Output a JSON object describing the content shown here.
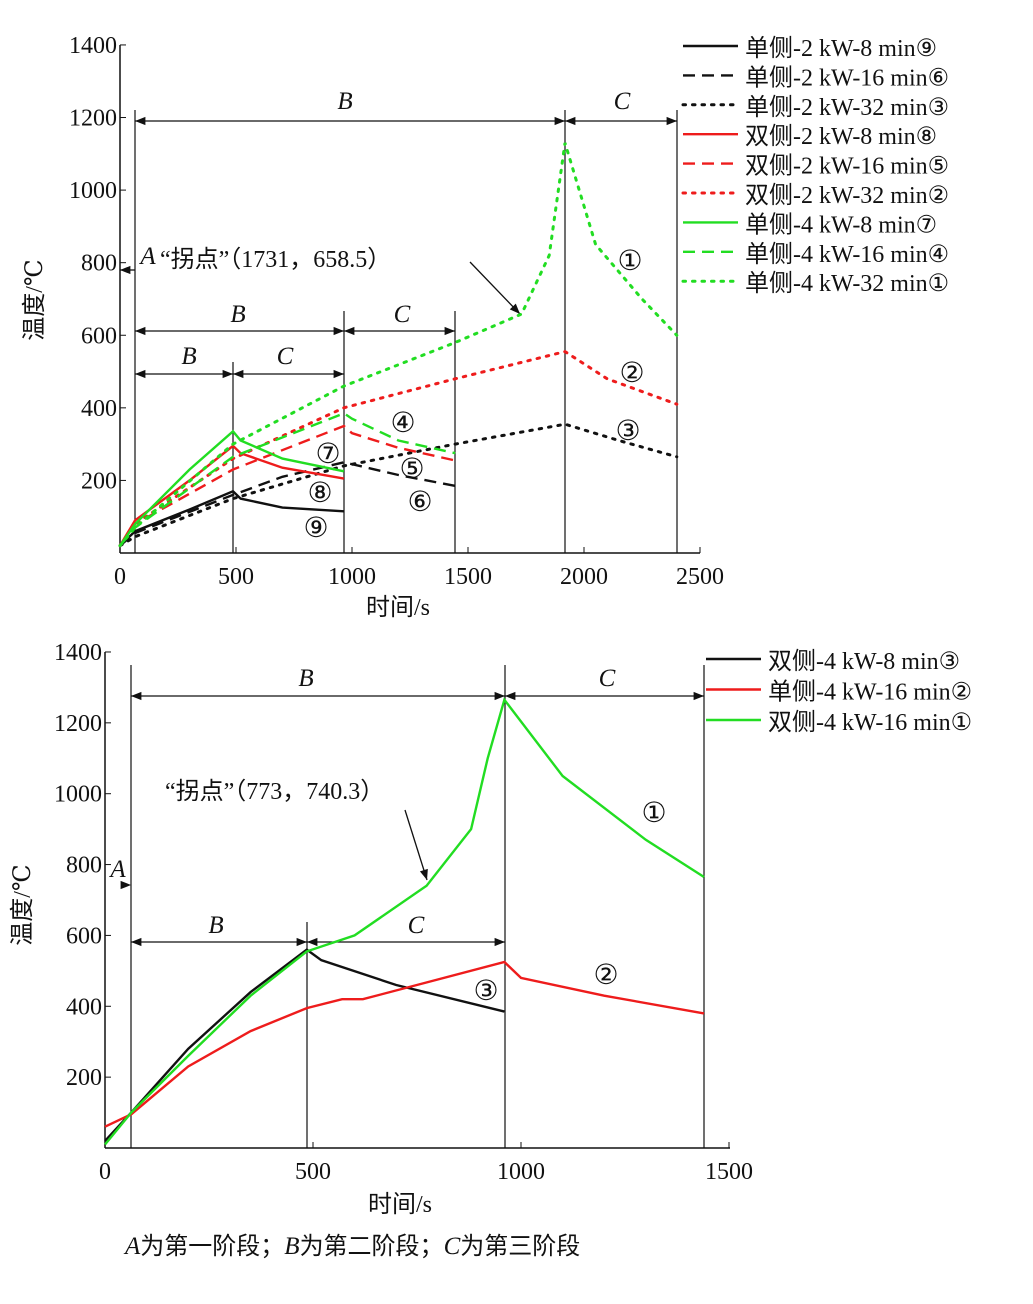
{
  "chart_data": [
    {
      "type": "line",
      "title": "",
      "xlabel": "时间/s",
      "ylabel": "温度/℃",
      "xlim": [
        0,
        2500
      ],
      "ylim": [
        0,
        1400
      ],
      "xticks": [
        "0",
        "500",
        "1000",
        "1500",
        "2000",
        "2500"
      ],
      "yticks": [
        "200",
        "400",
        "600",
        "800",
        "1000",
        "1200",
        "1400"
      ],
      "legend_position": "right",
      "series": [
        {
          "name": "单侧-2 kW-8 min⑨",
          "color": "#111111",
          "style": "solid",
          "tag": "⑨",
          "x": [
            0,
            65,
            300,
            487,
            520,
            700,
            965
          ],
          "y": [
            20,
            60,
            120,
            170,
            150,
            125,
            115
          ]
        },
        {
          "name": "单侧-2 kW-16 min⑥",
          "color": "#111111",
          "style": "dashed",
          "tag": "⑥",
          "x": [
            0,
            65,
            487,
            700,
            965,
            1200,
            1445
          ],
          "y": [
            20,
            55,
            160,
            210,
            250,
            215,
            185
          ]
        },
        {
          "name": "单侧-2 kW-32 min③",
          "color": "#111111",
          "style": "dotted",
          "tag": "③",
          "x": [
            0,
            65,
            487,
            965,
            1445,
            1918,
            2150,
            2400
          ],
          "y": [
            20,
            45,
            150,
            240,
            300,
            355,
            310,
            265
          ]
        },
        {
          "name": "双侧-2 kW-8 min⑧",
          "color": "#ee1c1c",
          "style": "solid",
          "tag": "⑧",
          "x": [
            0,
            65,
            300,
            487,
            520,
            700,
            965
          ],
          "y": [
            20,
            90,
            200,
            295,
            275,
            235,
            205
          ]
        },
        {
          "name": "双侧-2 kW-16 min⑤",
          "color": "#ee1c1c",
          "style": "dashed",
          "tag": "⑤",
          "x": [
            0,
            65,
            487,
            965,
            1000,
            1200,
            1445
          ],
          "y": [
            20,
            80,
            230,
            350,
            330,
            290,
            255
          ]
        },
        {
          "name": "双侧-2 kW-32 min②",
          "color": "#ee1c1c",
          "style": "dotted",
          "tag": "②",
          "x": [
            0,
            65,
            487,
            965,
            1445,
            1918,
            2100,
            2400
          ],
          "y": [
            20,
            80,
            260,
            400,
            480,
            555,
            480,
            410
          ]
        },
        {
          "name": "单侧-4 kW-8 min⑦",
          "color": "#22dd22",
          "style": "solid",
          "tag": "⑦",
          "x": [
            0,
            65,
            300,
            487,
            520,
            700,
            965
          ],
          "y": [
            20,
            80,
            230,
            335,
            310,
            260,
            225
          ]
        },
        {
          "name": "单侧-4 kW-16 min④",
          "color": "#22dd22",
          "style": "dashed",
          "tag": "④",
          "x": [
            0,
            65,
            487,
            965,
            1000,
            1200,
            1445
          ],
          "y": [
            20,
            70,
            265,
            385,
            370,
            310,
            275
          ]
        },
        {
          "name": "单侧-4 kW-32 min①",
          "color": "#22dd22",
          "style": "dotted",
          "tag": "①",
          "x": [
            0,
            65,
            487,
            965,
            1445,
            1731,
            1850,
            1918,
            2050,
            2250,
            2400
          ],
          "y": [
            20,
            70,
            300,
            460,
            580,
            658.5,
            820,
            1130,
            850,
            700,
            600
          ]
        }
      ],
      "annotations": {
        "stage_A": "A",
        "stage_B": "B",
        "stage_C": "C",
        "inflection_label": "“拐点”（1731，658.5）",
        "inflection_point": [
          1731,
          658.5
        ]
      }
    },
    {
      "type": "line",
      "title": "",
      "xlabel": "时间/s",
      "ylabel": "温度/℃",
      "xlim": [
        0,
        1500
      ],
      "ylim": [
        0,
        1400
      ],
      "xticks": [
        "0",
        "500",
        "1000",
        "1500"
      ],
      "yticks": [
        "200",
        "400",
        "600",
        "800",
        "1000",
        "1200",
        "1400"
      ],
      "legend_position": "right",
      "series": [
        {
          "name": "双侧-4 kW-8 min③",
          "color": "#111111",
          "style": "solid",
          "tag": "③",
          "x": [
            0,
            63,
            200,
            350,
            485,
            520,
            700,
            960
          ],
          "y": [
            20,
            100,
            280,
            440,
            560,
            530,
            460,
            385
          ]
        },
        {
          "name": "单侧-4 kW-16 min②",
          "color": "#ee1c1c",
          "style": "solid",
          "tag": "②",
          "x": [
            0,
            63,
            200,
            350,
            485,
            570,
            620,
            960,
            1000,
            1200,
            1440
          ],
          "y": [
            60,
            95,
            230,
            330,
            395,
            420,
            420,
            525,
            480,
            430,
            380
          ]
        },
        {
          "name": "双侧-4 kW-16 min①",
          "color": "#22dd22",
          "style": "solid",
          "tag": "①",
          "x": [
            0,
            63,
            200,
            350,
            485,
            600,
            773,
            880,
            920,
            960,
            1100,
            1300,
            1440
          ],
          "y": [
            10,
            100,
            260,
            430,
            555,
            600,
            740.3,
            900,
            1100,
            1265,
            1050,
            870,
            765
          ]
        }
      ],
      "annotations": {
        "stage_A": "A",
        "stage_B": "B",
        "stage_C": "C",
        "inflection_label": "“拐点”（773，740.3）",
        "inflection_point": [
          773,
          740.3
        ]
      }
    }
  ],
  "caption": {
    "a": "A",
    "a_text": "为第一阶段；",
    "b": "B",
    "b_text": "为第二阶段；",
    "c": "C",
    "c_text": "为第三阶段"
  }
}
